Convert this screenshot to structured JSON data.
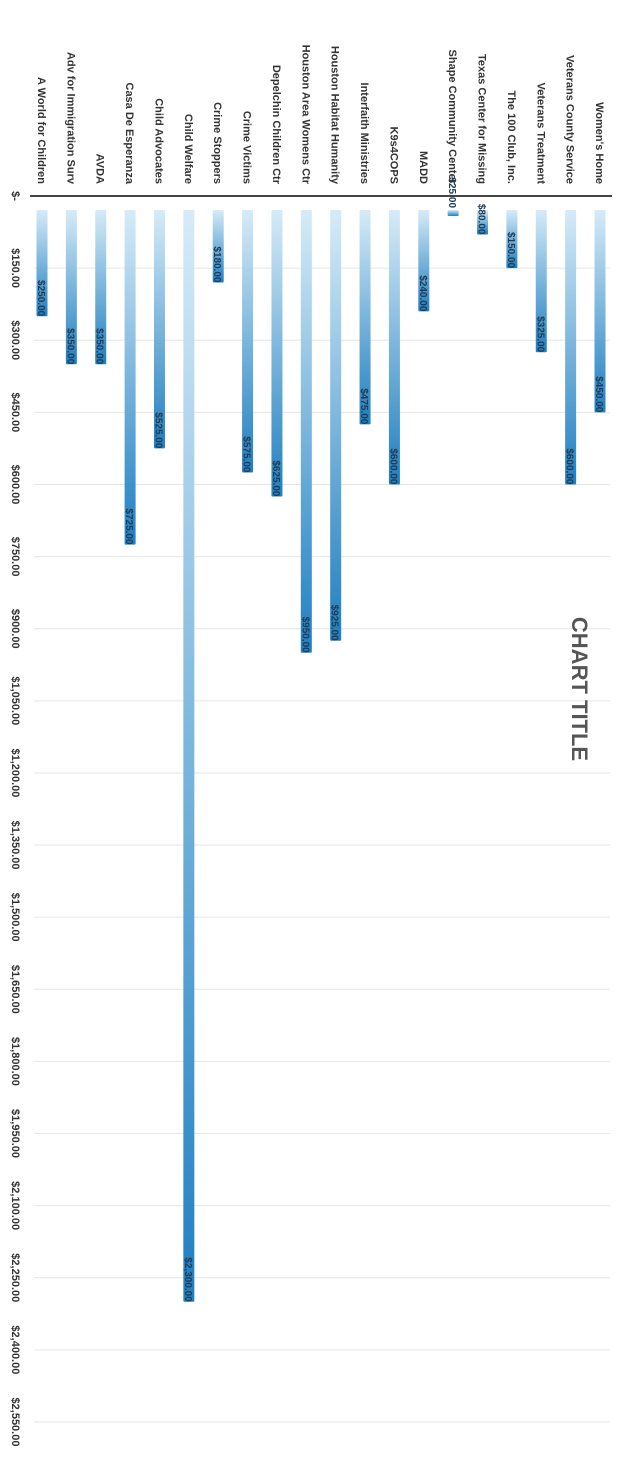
{
  "chart_data": {
    "type": "bar",
    "orientation": "horizontal",
    "title": "CHART TITLE",
    "categories": [
      "Women's Home",
      "Veterans County Service",
      "Veterans Treatment",
      "The 100 Club, Inc.",
      "Texas Center for Missing",
      "Shape Community Center",
      "MADD",
      "K9s4COPS",
      "Interfaith Ministries",
      "Houston Habitat Humanity",
      "Houston Area Womens Ctr",
      "Depelchin Children Ctr",
      "Crime Victims",
      "Crime Stoppers",
      "Child Welfare",
      "Child Advocates",
      "Casa De Esperanza",
      "AVDA",
      "Adv for Immigration Surv",
      "A World for Children"
    ],
    "values": [
      450,
      600,
      325,
      150,
      80,
      25,
      240,
      600,
      475,
      925,
      950,
      625,
      575,
      180,
      2300,
      525,
      725,
      350,
      350,
      250
    ],
    "data_labels": [
      "$450.00",
      "$600.00",
      "$325.00",
      "$150.00",
      "$80.00",
      "$25.00",
      "$240.00",
      "$600.00",
      "$475.00",
      "$925.00",
      "$950.00",
      "$625.00",
      "$575.00",
      "$180.00",
      "$2,300.00",
      "$525.00",
      "$725.00",
      "$350.00",
      "$350.00",
      "$250.00"
    ],
    "xlim": [
      0,
      2550
    ],
    "x_ticks": [
      "$-",
      "$150.00",
      "$300.00",
      "$450.00",
      "$600.00",
      "$750.00",
      "$900.00",
      "$1,050.00",
      "$1,200.00",
      "$1,350.00",
      "$1,500.00",
      "$1,650.00",
      "$1,800.00",
      "$1,950.00",
      "$2,100.00",
      "$2,250.00",
      "$2,400.00",
      "$2,550.00"
    ],
    "x_tick_values": [
      0,
      150,
      300,
      450,
      600,
      750,
      900,
      1050,
      1200,
      1350,
      1500,
      1650,
      1800,
      1950,
      2100,
      2250,
      2400,
      2550
    ],
    "grid": true,
    "legend": "none",
    "colors": {
      "bar_light": "#cfe6f6",
      "bar_dark": "#1f7fc0",
      "label": "#1f3a56",
      "axis": "#444444"
    }
  }
}
